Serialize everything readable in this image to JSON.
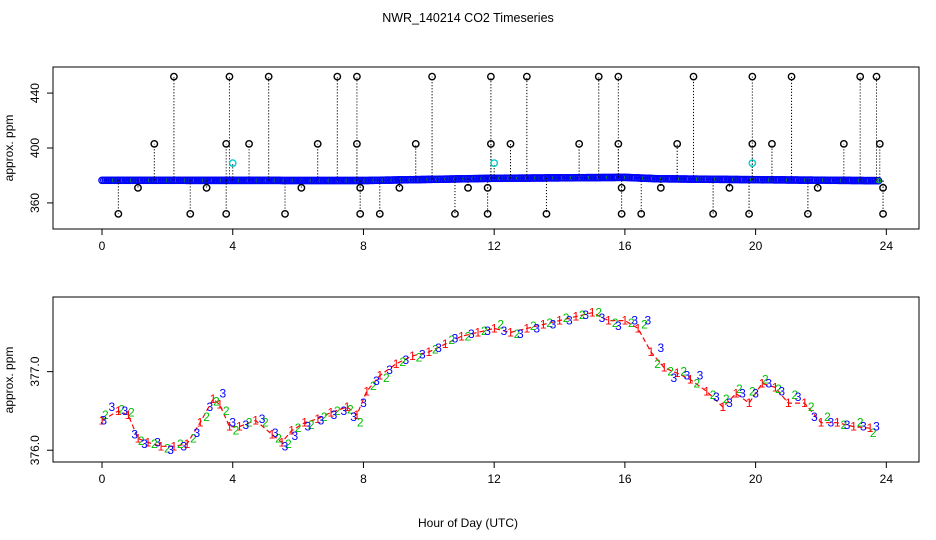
{
  "chart_data": {
    "title": "NWR_140214  CO2 Timeseries",
    "xlabel": "Hour of Day (UTC)",
    "colors": {
      "code1": "#ff0000",
      "code2": "#00c000",
      "code3": "#0000ff",
      "flag": "#000000",
      "alt": "#00cccc",
      "axis": "#000000"
    },
    "panels": [
      {
        "type": "scatter",
        "ylabel": "approx. ppm",
        "xlim": [
          -1.5,
          25
        ],
        "ylim": [
          341,
          459
        ],
        "xticks": [
          "0",
          "4",
          "8",
          "12",
          "16",
          "20",
          "24"
        ],
        "yticks": [
          "360",
          "400",
          "440"
        ],
        "series": [
          {
            "kind": "baseline",
            "x": [
              0,
              8,
              11.9,
              16,
              17,
              20,
              23.8
            ],
            "y": [
              376.5,
              376.3,
              377.9,
              378.6,
              377.6,
              376.9,
              376.2
            ]
          },
          {
            "kind": "flagged-high",
            "x": [
              2.2,
              3.9,
              5.1,
              7.2,
              7.8,
              10.1,
              11.9,
              13.0,
              15.2,
              15.8,
              18.1,
              19.9,
              21.1,
              23.2,
              23.7
            ],
            "y": [
              452,
              452,
              452,
              452,
              452,
              452,
              452,
              452,
              452,
              452,
              452,
              452,
              452,
              452,
              452
            ]
          },
          {
            "kind": "flagged-mid",
            "x": [
              1.6,
              3.8,
              4.5,
              6.6,
              7.8,
              9.6,
              11.9,
              12.5,
              14.6,
              15.8,
              17.6,
              19.9,
              20.5,
              22.7,
              23.8
            ],
            "y": [
              403,
              403,
              403,
              403,
              403,
              403,
              403,
              403,
              403,
              403,
              403,
              403,
              403,
              403,
              403
            ]
          },
          {
            "kind": "flagged-low",
            "x": [
              0.5,
              2.7,
              3.8,
              5.6,
              7.9,
              8.5,
              10.8,
              11.8,
              13.6,
              15.9,
              16.5,
              18.7,
              19.8,
              21.6,
              23.9
            ],
            "y": [
              352,
              352,
              352,
              352,
              352,
              352,
              352,
              352,
              352,
              352,
              352,
              352,
              352,
              352,
              352
            ]
          },
          {
            "kind": "flagged-near",
            "x": [
              1.1,
              3.2,
              6.1,
              7.9,
              9.1,
              11.2,
              11.8,
              15.9,
              17.1,
              19.2,
              21.9,
              23.9
            ],
            "y": [
              371,
              371,
              371,
              371,
              371,
              371,
              371,
              371,
              371,
              371,
              371,
              371
            ]
          },
          {
            "kind": "alt",
            "x": [
              4.0,
              12.0,
              19.9
            ],
            "y": [
              389,
              389,
              389
            ]
          }
        ]
      },
      {
        "type": "scatter",
        "ylabel": "approx. ppm",
        "xlim": [
          -1.5,
          25
        ],
        "ylim": [
          375.85,
          377.95
        ],
        "xticks": [
          "0",
          "4",
          "8",
          "12",
          "16",
          "20",
          "24"
        ],
        "yticks": [
          "376.0",
          "377.0"
        ],
        "series": [
          {
            "name": "1",
            "x": [
              0,
              0.5,
              0.8,
              1.1,
              1.4,
              1.8,
              2.2,
              2.6,
              3.0,
              3.4,
              3.6,
              3.9,
              4.2,
              4.7,
              5.2,
              5.5,
              5.8,
              6.2,
              6.6,
              7.0,
              7.5,
              7.8,
              8.1,
              8.5,
              9.0,
              9.5,
              10.0,
              10.5,
              11.0,
              11.5,
              12.0,
              12.5,
              13.0,
              13.5,
              14.0,
              14.5,
              15.0,
              15.5,
              16.0,
              16.4,
              16.8,
              17.2,
              17.6,
              18.0,
              18.5,
              19.0,
              19.4,
              19.8,
              20.2,
              20.6,
              21.0,
              21.5,
              22.0,
              22.5,
              23.0,
              23.5
            ],
            "y": [
              376.38,
              376.5,
              376.45,
              376.15,
              376.1,
              376.05,
              376.05,
              376.08,
              376.35,
              376.65,
              376.58,
              376.3,
              376.3,
              376.38,
              376.2,
              376.1,
              376.25,
              376.35,
              376.4,
              376.48,
              376.55,
              376.45,
              376.75,
              376.95,
              377.1,
              377.2,
              377.25,
              377.35,
              377.45,
              377.5,
              377.55,
              377.5,
              377.55,
              377.6,
              377.65,
              377.7,
              377.75,
              377.65,
              377.65,
              377.55,
              377.25,
              377.05,
              376.98,
              376.9,
              376.75,
              376.55,
              376.72,
              376.6,
              376.85,
              376.8,
              376.6,
              376.6,
              376.35,
              376.35,
              376.3,
              376.28
            ]
          },
          {
            "name": "2",
            "x": [
              0.1,
              0.6,
              0.9,
              1.2,
              1.6,
              2.0,
              2.4,
              2.8,
              3.2,
              3.5,
              3.8,
              4.1,
              4.5,
              5.0,
              5.4,
              5.7,
              6.0,
              6.4,
              6.8,
              7.2,
              7.6,
              7.9,
              8.3,
              8.7,
              9.2,
              9.7,
              10.2,
              10.7,
              11.2,
              11.7,
              12.2,
              12.7,
              13.2,
              13.7,
              14.2,
              14.7,
              15.2,
              15.7,
              16.2,
              16.6,
              17.0,
              17.4,
              17.8,
              18.2,
              18.7,
              19.1,
              19.5,
              19.9,
              20.3,
              20.7,
              21.2,
              21.7,
              22.2,
              22.7,
              23.2,
              23.6
            ],
            "y": [
              376.45,
              376.52,
              376.48,
              376.12,
              376.08,
              376.02,
              376.08,
              376.15,
              376.42,
              376.62,
              376.5,
              376.25,
              376.35,
              376.35,
              376.15,
              376.08,
              376.28,
              376.32,
              376.42,
              376.5,
              376.52,
              376.35,
              376.82,
              376.92,
              377.12,
              377.18,
              377.28,
              377.4,
              377.45,
              377.52,
              377.6,
              377.48,
              377.58,
              377.62,
              377.68,
              377.72,
              377.75,
              377.62,
              377.62,
              377.6,
              377.1,
              377.0,
              377.0,
              376.85,
              376.7,
              376.65,
              376.78,
              376.75,
              376.9,
              376.78,
              376.7,
              376.55,
              376.42,
              376.32,
              376.35,
              376.22
            ]
          },
          {
            "name": "3",
            "x": [
              0.05,
              0.3,
              0.7,
              1.0,
              1.3,
              1.7,
              2.1,
              2.5,
              2.9,
              3.3,
              3.7,
              4.0,
              4.4,
              4.9,
              5.3,
              5.6,
              5.9,
              6.3,
              6.7,
              7.1,
              7.4,
              7.7,
              8.0,
              8.4,
              8.8,
              9.3,
              9.8,
              10.3,
              10.8,
              11.3,
              11.8,
              12.3,
              12.8,
              13.3,
              13.8,
              14.3,
              14.8,
              15.3,
              15.8,
              16.3,
              16.7,
              17.1,
              17.5,
              17.9,
              18.3,
              18.8,
              19.2,
              19.6,
              20.0,
              20.4,
              20.8,
              21.3,
              21.8,
              22.3,
              22.8,
              23.3,
              23.7
            ],
            "y": [
              376.38,
              376.55,
              376.5,
              376.2,
              376.08,
              376.1,
              376.0,
              376.05,
              376.22,
              376.55,
              376.72,
              376.35,
              376.32,
              376.4,
              376.22,
              376.05,
              376.18,
              376.3,
              376.38,
              376.45,
              376.5,
              376.42,
              376.6,
              376.88,
              377.02,
              377.15,
              377.22,
              377.3,
              377.42,
              377.48,
              377.52,
              377.52,
              377.48,
              377.55,
              377.6,
              377.65,
              377.72,
              377.68,
              377.58,
              377.65,
              377.65,
              377.3,
              376.92,
              376.95,
              376.95,
              376.68,
              376.6,
              376.72,
              376.72,
              376.85,
              376.75,
              376.68,
              376.42,
              376.35,
              376.32,
              376.3,
              376.3
            ]
          }
        ]
      }
    ]
  }
}
